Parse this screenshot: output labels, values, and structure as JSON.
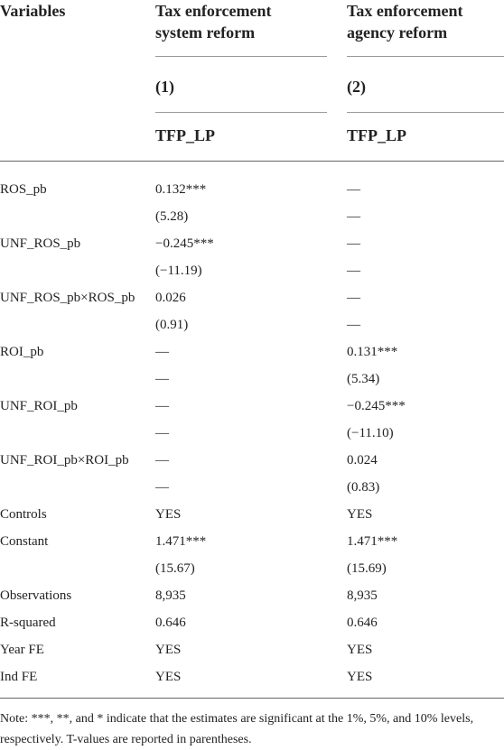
{
  "table": {
    "header": [
      "Variables",
      "Tax enforcement system reform",
      "Tax enforcement agency reform"
    ],
    "numbers": [
      "(1)",
      "(2)"
    ],
    "dependent": [
      "TFP_LP",
      "TFP_LP"
    ],
    "rows": [
      [
        "ROS_pb",
        "0.132***",
        "—"
      ],
      [
        "",
        "(5.28)",
        "—"
      ],
      [
        "UNF_ROS_pb",
        "−0.245***",
        "—"
      ],
      [
        "",
        "(−11.19)",
        "—"
      ],
      [
        "UNF_ROS_pb×ROS_pb",
        "0.026",
        "—"
      ],
      [
        "",
        "(0.91)",
        "—"
      ],
      [
        "ROI_pb",
        "—",
        "0.131***"
      ],
      [
        "",
        "—",
        "(5.34)"
      ],
      [
        "UNF_ROI_pb",
        "—",
        "−0.245***"
      ],
      [
        "",
        "—",
        "(−11.10)"
      ],
      [
        "UNF_ROI_pb×ROI_pb",
        "—",
        "0.024"
      ],
      [
        "",
        "—",
        "(0.83)"
      ],
      [
        "Controls",
        "YES",
        "YES"
      ],
      [
        "Constant",
        "1.471***",
        "1.471***"
      ],
      [
        "",
        "(15.67)",
        "(15.69)"
      ],
      [
        "Observations",
        "8,935",
        "8,935"
      ],
      [
        "R-squared",
        "0.646",
        "0.646"
      ],
      [
        "Year FE",
        "YES",
        "YES"
      ],
      [
        "Ind FE",
        "YES",
        "YES"
      ]
    ],
    "note": "Note: ***, **, and * indicate that the estimates are significant at the 1%, 5%, and 10% levels, respectively. T-values are reported in parentheses."
  }
}
